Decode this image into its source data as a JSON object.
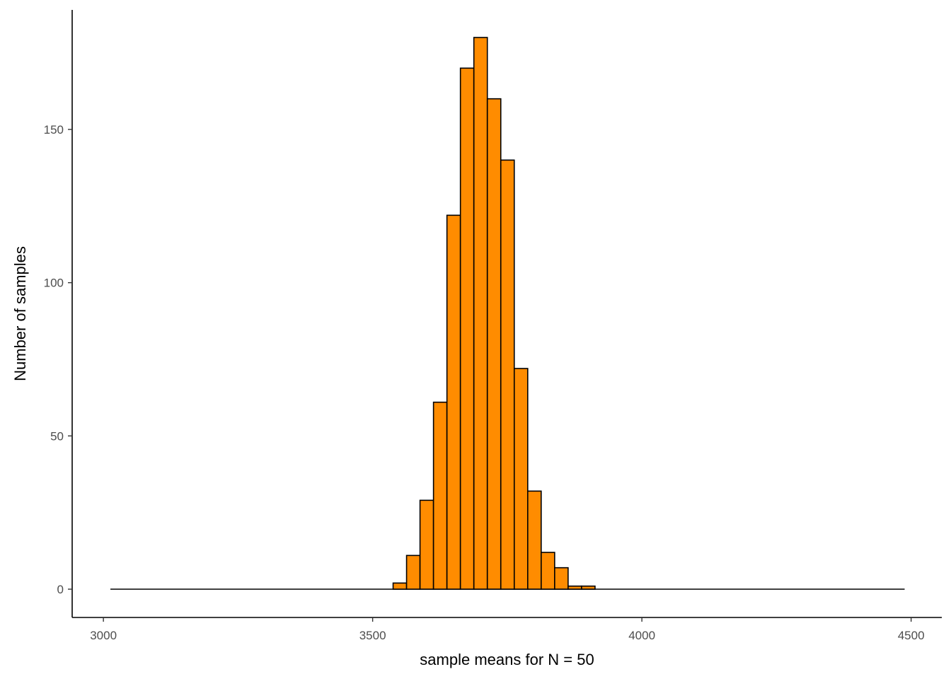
{
  "chart_data": {
    "type": "bar",
    "subtype": "histogram",
    "title": "",
    "xlabel": "sample means for N = 50",
    "ylabel": "Number of samples",
    "xlim": [
      2942,
      4557
    ],
    "ylim": [
      -9,
      180
    ],
    "x_ticks": [
      3000,
      3500,
      4000,
      4500
    ],
    "y_ticks": [
      0,
      50,
      100,
      150
    ],
    "bin_width": 25,
    "bins_start": 3013,
    "bins_end": 4488,
    "bins": [
      {
        "x_start": 3538,
        "x_end": 3563,
        "count": 2
      },
      {
        "x_start": 3563,
        "x_end": 3588,
        "count": 11
      },
      {
        "x_start": 3588,
        "x_end": 3613,
        "count": 29
      },
      {
        "x_start": 3613,
        "x_end": 3638,
        "count": 61
      },
      {
        "x_start": 3638,
        "x_end": 3663,
        "count": 122
      },
      {
        "x_start": 3663,
        "x_end": 3688,
        "count": 170
      },
      {
        "x_start": 3688,
        "x_end": 3713,
        "count": 180
      },
      {
        "x_start": 3713,
        "x_end": 3738,
        "count": 160
      },
      {
        "x_start": 3738,
        "x_end": 3763,
        "count": 140
      },
      {
        "x_start": 3763,
        "x_end": 3788,
        "count": 72
      },
      {
        "x_start": 3788,
        "x_end": 3813,
        "count": 32
      },
      {
        "x_start": 3813,
        "x_end": 3838,
        "count": 12
      },
      {
        "x_start": 3838,
        "x_end": 3863,
        "count": 7
      },
      {
        "x_start": 3863,
        "x_end": 3888,
        "count": 1
      },
      {
        "x_start": 3888,
        "x_end": 3913,
        "count": 1
      }
    ],
    "grid": false,
    "legend": "none",
    "colors": {
      "bar_fill": "#ff8c00",
      "bar_stroke": "#000000",
      "axis": "#000000",
      "tick_label": "#4d4d4d"
    }
  }
}
